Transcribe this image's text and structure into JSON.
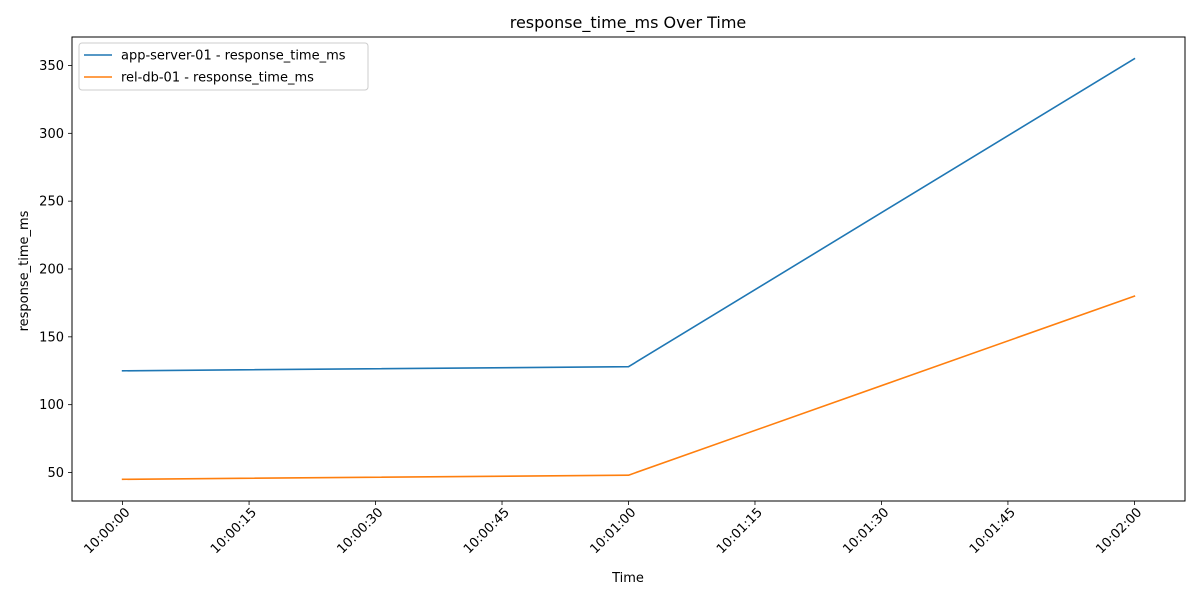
{
  "chart_data": {
    "type": "line",
    "title": "response_time_ms Over Time",
    "xlabel": "Time",
    "ylabel": "response_time_ms",
    "x": [
      "10:00:00",
      "10:01:00",
      "10:02:00"
    ],
    "x_ticks": [
      "10:00:00",
      "10:00:15",
      "10:00:30",
      "10:00:45",
      "10:01:00",
      "10:01:15",
      "10:01:30",
      "10:01:45",
      "10:02:00"
    ],
    "y_ticks": [
      50,
      100,
      150,
      200,
      250,
      300,
      350
    ],
    "ylim": [
      29,
      371
    ],
    "grid": false,
    "legend_position": "top-left",
    "series": [
      {
        "name": "app-server-01 - response_time_ms",
        "color": "#1f77b4",
        "values": [
          125,
          128,
          355
        ]
      },
      {
        "name": "rel-db-01 - response_time_ms",
        "color": "#ff7f0e",
        "values": [
          45,
          48,
          180
        ]
      }
    ]
  }
}
